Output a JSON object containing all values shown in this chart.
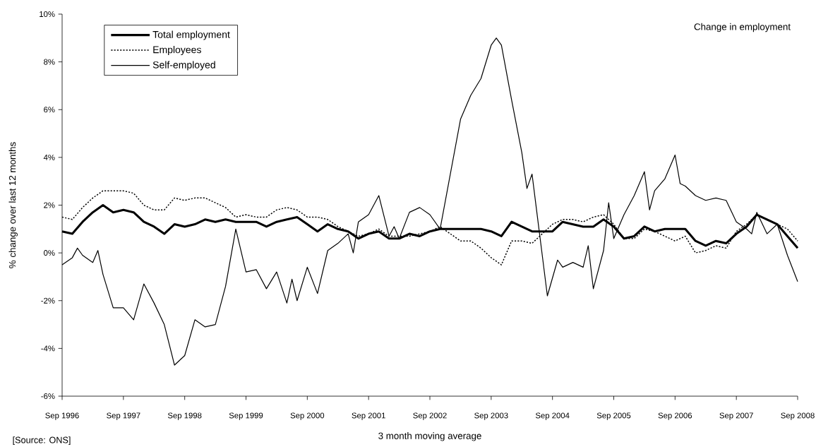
{
  "chart_data": {
    "type": "line",
    "title": "Change in employment",
    "xlabel": "3 month moving average",
    "ylabel": "% change over last 12 months",
    "annotations": [
      "[Source: ONS]"
    ],
    "x": [
      "1996-09",
      "1996-11",
      "1997-01",
      "1997-03",
      "1997-05",
      "1997-07",
      "1997-09",
      "1997-11",
      "1998-01",
      "1998-03",
      "1998-05",
      "1998-07",
      "1998-09",
      "1998-11",
      "1999-01",
      "1999-03",
      "1999-05",
      "1999-07",
      "1999-09",
      "1999-11",
      "2000-01",
      "2000-03",
      "2000-05",
      "2000-07",
      "2000-09",
      "2000-11",
      "2001-01",
      "2001-03",
      "2001-05",
      "2001-07",
      "2001-09",
      "2001-11",
      "2002-01",
      "2002-03",
      "2002-05",
      "2002-07",
      "2002-09",
      "2002-11",
      "2003-01",
      "2003-03",
      "2003-05",
      "2003-07",
      "2003-09",
      "2003-11",
      "2004-01",
      "2004-03",
      "2004-05",
      "2004-07",
      "2004-09",
      "2004-11",
      "2005-01",
      "2005-03",
      "2005-05",
      "2005-07",
      "2005-09",
      "2005-11",
      "2006-01",
      "2006-03",
      "2006-05",
      "2006-07",
      "2006-09",
      "2006-11",
      "2007-01",
      "2007-03",
      "2007-05",
      "2007-07",
      "2007-09",
      "2007-11",
      "2008-01",
      "2008-03",
      "2008-05",
      "2008-07",
      "2008-09"
    ],
    "xlim": [
      "1996-09",
      "2008-09"
    ],
    "xticks": [
      {
        "value": "1996-09",
        "label": "Sep 1996"
      },
      {
        "value": "1997-09",
        "label": "Sep 1997"
      },
      {
        "value": "1998-09",
        "label": "Sep 1998"
      },
      {
        "value": "1999-09",
        "label": "Sep 1999"
      },
      {
        "value": "2000-09",
        "label": "Sep 2000"
      },
      {
        "value": "2001-09",
        "label": "Sep 2001"
      },
      {
        "value": "2002-09",
        "label": "Sep 2002"
      },
      {
        "value": "2003-09",
        "label": "Sep 2003"
      },
      {
        "value": "2004-09",
        "label": "Sep 2004"
      },
      {
        "value": "2005-09",
        "label": "Sep 2005"
      },
      {
        "value": "2006-09",
        "label": "Sep 2006"
      },
      {
        "value": "2007-09",
        "label": "Sep 2007"
      },
      {
        "value": "2008-09",
        "label": "Sep 2008"
      }
    ],
    "ylim": [
      -6,
      10
    ],
    "yticks": [
      {
        "value": -6,
        "label": "-6%"
      },
      {
        "value": -4,
        "label": "-4%"
      },
      {
        "value": -2,
        "label": "-2%"
      },
      {
        "value": 0,
        "label": "0%"
      },
      {
        "value": 2,
        "label": "2%"
      },
      {
        "value": 4,
        "label": "4%"
      },
      {
        "value": 6,
        "label": "6%"
      },
      {
        "value": 8,
        "label": "8%"
      },
      {
        "value": 10,
        "label": "10%"
      }
    ],
    "grid": false,
    "legend": "top left",
    "marker": "none",
    "series": [
      {
        "name": "Total employment",
        "color": "#000000",
        "line_style": "solid",
        "values": [
          0.9,
          0.8,
          1.3,
          1.7,
          2.0,
          1.7,
          1.8,
          1.7,
          1.3,
          1.1,
          0.8,
          1.2,
          1.1,
          1.2,
          1.4,
          1.3,
          1.4,
          1.3,
          1.3,
          1.3,
          1.1,
          1.3,
          1.4,
          1.5,
          1.2,
          0.9,
          1.2,
          1.0,
          0.9,
          0.6,
          0.8,
          0.9,
          0.6,
          0.6,
          0.8,
          0.7,
          0.9,
          1.0,
          1.0,
          1.0,
          1.0,
          1.0,
          0.9,
          0.7,
          1.3,
          1.1,
          0.9,
          0.9,
          0.9,
          1.3,
          1.2,
          1.1,
          1.1,
          1.4,
          1.1,
          0.6,
          0.7,
          1.1,
          0.9,
          1.0,
          1.0,
          1.0,
          0.5,
          0.3,
          0.5,
          0.4,
          0.8,
          1.1,
          1.6,
          1.4,
          1.2,
          0.7,
          0.2
        ]
      },
      {
        "name": "Employees",
        "color": "#000000",
        "line_style": "dotted",
        "values": [
          1.5,
          1.4,
          1.9,
          2.3,
          2.6,
          2.6,
          2.6,
          2.5,
          2.0,
          1.8,
          1.8,
          2.3,
          2.2,
          2.3,
          2.3,
          2.1,
          1.9,
          1.5,
          1.6,
          1.5,
          1.5,
          1.8,
          1.9,
          1.8,
          1.5,
          1.5,
          1.4,
          1.1,
          0.9,
          0.7,
          0.8,
          1.0,
          0.7,
          0.7,
          0.7,
          0.8,
          0.9,
          1.1,
          0.8,
          0.5,
          0.5,
          0.2,
          -0.2,
          -0.5,
          0.5,
          0.5,
          0.4,
          0.8,
          1.2,
          1.4,
          1.4,
          1.3,
          1.5,
          1.6,
          1.2,
          0.6,
          0.6,
          1.0,
          0.9,
          0.7,
          0.5,
          0.7,
          0.0,
          0.1,
          0.3,
          0.2,
          0.9,
          1.2,
          1.6,
          1.4,
          1.2,
          1.0,
          0.5
        ]
      },
      {
        "name": "Self-employed",
        "color": "#000000",
        "line_style": "solid",
        "x": [
          "1996-09",
          "1996-11",
          "1996-12",
          "1997-01",
          "1997-03",
          "1997-04",
          "1997-05",
          "1997-07",
          "1997-09",
          "1997-11",
          "1998-01",
          "1998-03",
          "1998-05",
          "1998-07",
          "1998-09",
          "1998-11",
          "1999-01",
          "1999-03",
          "1999-05",
          "1999-07",
          "1999-09",
          "1999-11",
          "2000-01",
          "2000-03",
          "2000-05",
          "2000-06",
          "2000-07",
          "2000-09",
          "2000-11",
          "2001-01",
          "2001-03",
          "2001-05",
          "2001-06",
          "2001-07",
          "2001-09",
          "2001-11",
          "2002-01",
          "2002-02",
          "2002-03",
          "2002-05",
          "2002-07",
          "2002-09",
          "2002-11",
          "2003-01",
          "2003-03",
          "2003-05",
          "2003-07",
          "2003-09",
          "2003-10",
          "2003-11",
          "2004-01",
          "2004-03",
          "2004-04",
          "2004-05",
          "2004-08",
          "2004-10",
          "2004-11",
          "2005-01",
          "2005-03",
          "2005-04",
          "2005-05",
          "2005-07",
          "2005-08",
          "2005-09",
          "2005-11",
          "2006-01",
          "2006-03",
          "2006-04",
          "2006-05",
          "2006-07",
          "2006-09",
          "2006-10",
          "2006-11",
          "2007-01",
          "2007-03",
          "2007-05",
          "2007-07",
          "2007-09",
          "2007-11",
          "2007-12",
          "2008-01",
          "2008-03",
          "2008-05",
          "2008-07",
          "2008-09"
        ],
        "values": [
          -0.5,
          -0.2,
          0.2,
          -0.1,
          -0.4,
          0.1,
          -0.9,
          -2.3,
          -2.3,
          -2.8,
          -1.3,
          -2.1,
          -3.0,
          -4.7,
          -4.3,
          -2.8,
          -3.1,
          -3.0,
          -1.4,
          1.0,
          -0.8,
          -0.7,
          -1.5,
          -0.8,
          -2.1,
          -1.1,
          -2.0,
          -0.6,
          -1.7,
          0.1,
          0.4,
          0.8,
          0.0,
          1.3,
          1.6,
          2.4,
          0.7,
          1.1,
          0.6,
          1.7,
          1.9,
          1.6,
          1.0,
          3.3,
          5.6,
          6.6,
          7.3,
          8.7,
          9.0,
          8.7,
          6.4,
          4.2,
          2.7,
          3.3,
          -1.8,
          -0.3,
          -0.6,
          -0.4,
          -0.6,
          0.3,
          -1.5,
          0.1,
          2.1,
          0.6,
          1.6,
          2.4,
          3.4,
          1.8,
          2.6,
          3.1,
          4.1,
          2.9,
          2.8,
          2.4,
          2.2,
          2.3,
          2.2,
          1.3,
          1.0,
          0.8,
          1.7,
          0.8,
          1.2,
          -0.1,
          -1.2
        ]
      }
    ]
  }
}
